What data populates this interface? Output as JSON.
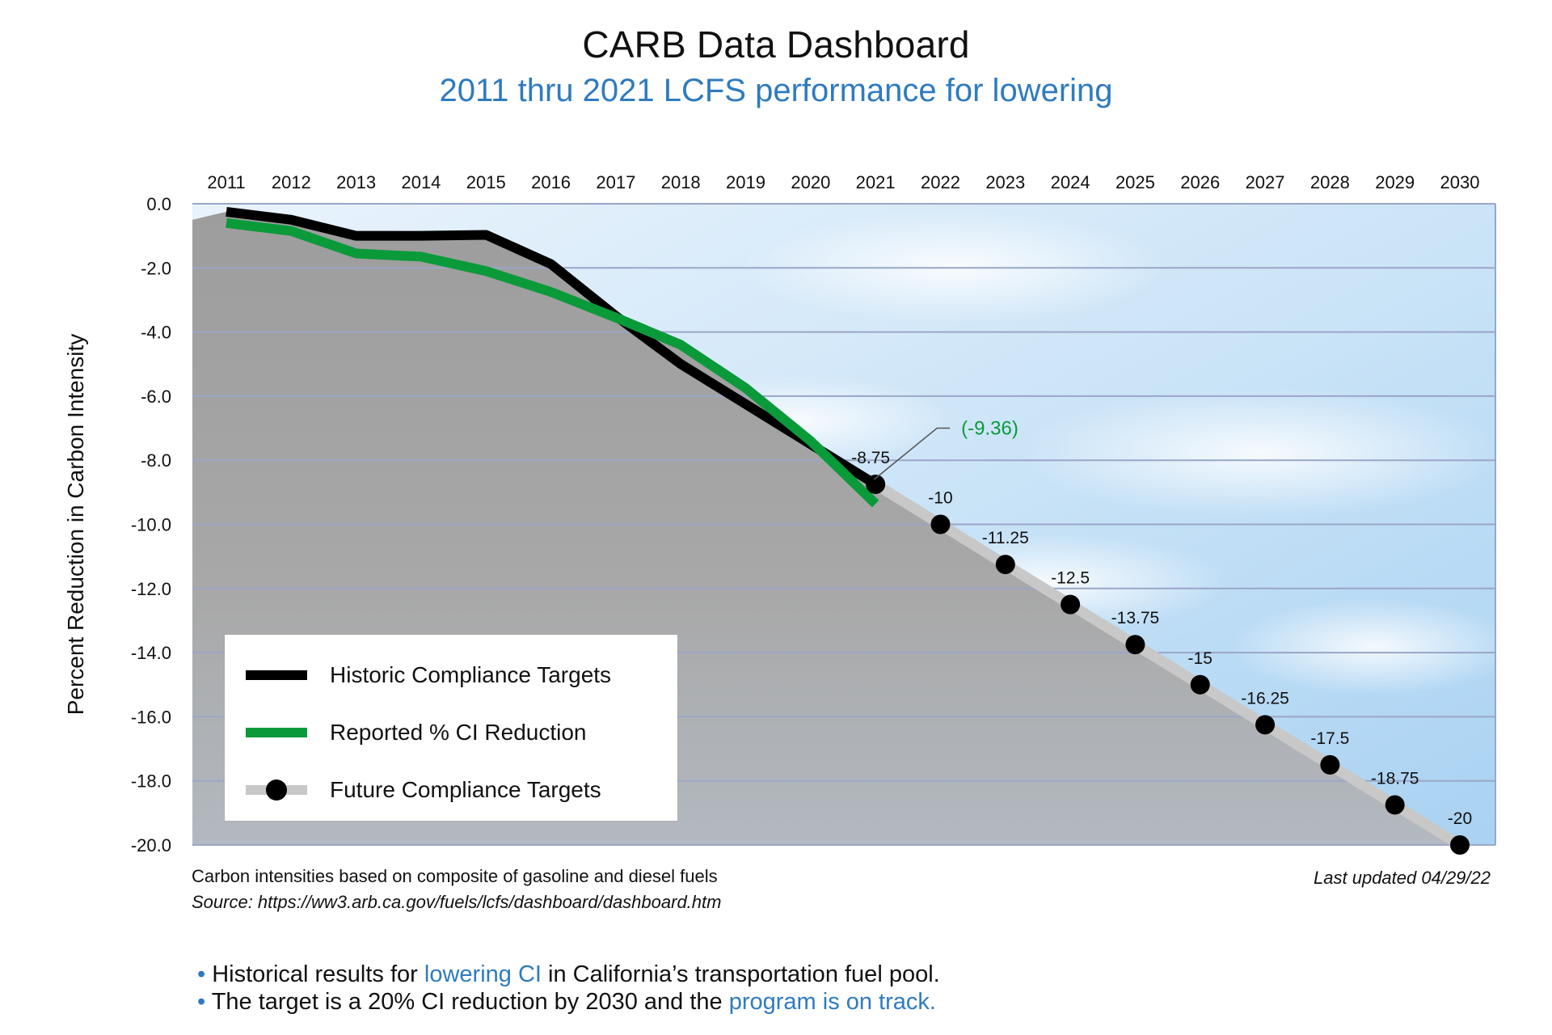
{
  "header": {
    "title": "CARB Data Dashboard",
    "subtitle": "2011 thru 2021 LCFS performance for lowering"
  },
  "colors": {
    "historic": "#000000",
    "reported": "#0a9a3a",
    "future_line": "#c8c8c8",
    "future_point": "#000000",
    "accent_blue": "#2e7bbf",
    "area_fill": "#a3a3a3"
  },
  "chart_data": {
    "type": "line",
    "title": "CARB Data Dashboard",
    "subtitle": "2011 thru 2021 LCFS performance for lowering",
    "xlabel": "",
    "ylabel": "Percent Reduction in Carbon Intensity",
    "x": [
      2011,
      2012,
      2013,
      2014,
      2015,
      2016,
      2017,
      2018,
      2019,
      2020,
      2021,
      2022,
      2023,
      2024,
      2025,
      2026,
      2027,
      2028,
      2029,
      2030
    ],
    "x_tick_labels": [
      "2011",
      "2012",
      "2013",
      "2014",
      "2015",
      "2016",
      "2017",
      "2018",
      "2019",
      "2020",
      "2021",
      "2022",
      "2023",
      "2024",
      "2025",
      "2026",
      "2027",
      "2028",
      "2029",
      "2030"
    ],
    "y_tick_labels": [
      "0.0",
      "-2.0",
      "-4.0",
      "-6.0",
      "-8.0",
      "-10.0",
      "-12.0",
      "-14.0",
      "-16.0",
      "-18.0",
      "-20.0"
    ],
    "ylim": [
      -20,
      0
    ],
    "grid": true,
    "x_axis_position": "top",
    "legend_position": "bottom-left",
    "series": [
      {
        "name": "Historic Compliance Targets",
        "style": "black-line",
        "x": [
          2011,
          2012,
          2013,
          2014,
          2015,
          2016,
          2017,
          2018,
          2019,
          2020,
          2021
        ],
        "values": [
          -0.25,
          -0.5,
          -1.0,
          -1.0,
          -0.97,
          -1.88,
          -3.5,
          -5.0,
          -6.25,
          -7.5,
          -8.75
        ]
      },
      {
        "name": "Reported % CI Reduction",
        "style": "green-line",
        "x": [
          2011,
          2012,
          2013,
          2014,
          2015,
          2016,
          2017,
          2018,
          2019,
          2020,
          2021
        ],
        "values": [
          -0.6,
          -0.85,
          -1.55,
          -1.65,
          -2.1,
          -2.75,
          -3.55,
          -4.4,
          -5.75,
          -7.4,
          -9.36
        ]
      },
      {
        "name": "Future Compliance Targets",
        "style": "gray-line-black-dots",
        "x": [
          2021,
          2022,
          2023,
          2024,
          2025,
          2026,
          2027,
          2028,
          2029,
          2030
        ],
        "values": [
          -8.75,
          -10,
          -11.25,
          -12.5,
          -13.75,
          -15,
          -16.25,
          -17.5,
          -18.75,
          -20
        ]
      }
    ],
    "point_labels": [
      {
        "x": 2021,
        "y": -8.75,
        "text": "-8.75"
      },
      {
        "x": 2022,
        "y": -10,
        "text": "-10"
      },
      {
        "x": 2023,
        "y": -11.25,
        "text": "-11.25"
      },
      {
        "x": 2024,
        "y": -12.5,
        "text": "-12.5"
      },
      {
        "x": 2025,
        "y": -13.75,
        "text": "-13.75"
      },
      {
        "x": 2026,
        "y": -15,
        "text": "-15"
      },
      {
        "x": 2027,
        "y": -16.25,
        "text": "-16.25"
      },
      {
        "x": 2028,
        "y": -17.5,
        "text": "-17.5"
      },
      {
        "x": 2029,
        "y": -18.75,
        "text": "-18.75"
      },
      {
        "x": 2030,
        "y": -20,
        "text": "-20"
      }
    ],
    "annotations": [
      {
        "x": 2021,
        "y": -9.36,
        "text": "(-9.36)"
      }
    ]
  },
  "legend": {
    "items": [
      {
        "label": "Historic Compliance Targets"
      },
      {
        "label": "Reported % CI Reduction"
      },
      {
        "label": "Future Compliance Targets"
      }
    ]
  },
  "footer": {
    "note": "Carbon intensities based on composite of gasoline and diesel fuels",
    "source": "Source: https://ww3.arb.ca.gov/fuels/lcfs/dashboard/dashboard.htm",
    "updated": "Last updated 04/29/22"
  },
  "bullets": {
    "line1_a": "Historical results for ",
    "line1_hl": "lowering CI",
    "line1_b": " in California’s transportation fuel pool.",
    "line2_a": "The target is a 20% CI reduction by 2030 and the ",
    "line2_hl": "program is on track."
  }
}
